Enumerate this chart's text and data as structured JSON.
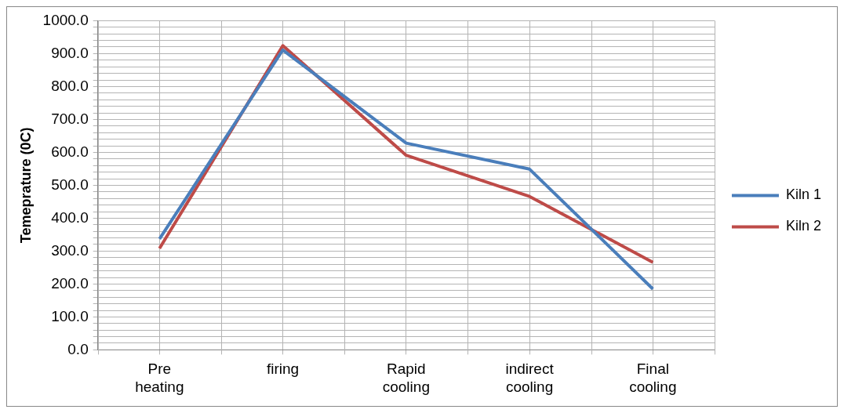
{
  "chart_data": {
    "type": "line",
    "ylabel": "Temeprature (0C)",
    "categories": [
      "Pre heating",
      "firing",
      "Rapid cooling",
      "indirect cooling",
      "Final cooling"
    ],
    "series": [
      {
        "name": "Kiln 1",
        "color": "#4a7ebb",
        "values": [
          337,
          911,
          628,
          549,
          185
        ]
      },
      {
        "name": "Kiln 2",
        "color": "#be4b48",
        "values": [
          308,
          924,
          591,
          466,
          266
        ]
      }
    ],
    "ylim": [
      0,
      1000
    ],
    "yticks": [
      {
        "value": 0,
        "label": "0.0"
      },
      {
        "value": 20,
        "label": null
      },
      {
        "value": 40,
        "label": null
      },
      {
        "value": 60,
        "label": null
      },
      {
        "value": 80,
        "label": null
      },
      {
        "value": 100,
        "label": "100.0"
      },
      {
        "value": 120,
        "label": null
      },
      {
        "value": 140,
        "label": null
      },
      {
        "value": 160,
        "label": null
      },
      {
        "value": 180,
        "label": null
      },
      {
        "value": 200,
        "label": "200.0"
      },
      {
        "value": 220,
        "label": null
      },
      {
        "value": 240,
        "label": null
      },
      {
        "value": 260,
        "label": null
      },
      {
        "value": 280,
        "label": null
      },
      {
        "value": 300,
        "label": "300.0"
      },
      {
        "value": 320,
        "label": null
      },
      {
        "value": 340,
        "label": null
      },
      {
        "value": 360,
        "label": null
      },
      {
        "value": 380,
        "label": null
      },
      {
        "value": 400,
        "label": "400.0"
      },
      {
        "value": 420,
        "label": null
      },
      {
        "value": 440,
        "label": null
      },
      {
        "value": 460,
        "label": null
      },
      {
        "value": 480,
        "label": null
      },
      {
        "value": 500,
        "label": "500.0"
      },
      {
        "value": 520,
        "label": null
      },
      {
        "value": 540,
        "label": null
      },
      {
        "value": 560,
        "label": null
      },
      {
        "value": 580,
        "label": null
      },
      {
        "value": 600,
        "label": "600.0"
      },
      {
        "value": 620,
        "label": null
      },
      {
        "value": 640,
        "label": null
      },
      {
        "value": 660,
        "label": null
      },
      {
        "value": 680,
        "label": null
      },
      {
        "value": 700,
        "label": "700.0"
      },
      {
        "value": 720,
        "label": null
      },
      {
        "value": 740,
        "label": null
      },
      {
        "value": 760,
        "label": null
      },
      {
        "value": 780,
        "label": null
      },
      {
        "value": 800,
        "label": "800.0"
      },
      {
        "value": 820,
        "label": null
      },
      {
        "value": 840,
        "label": null
      },
      {
        "value": 860,
        "label": null
      },
      {
        "value": 880,
        "label": null
      },
      {
        "value": 900,
        "label": "900.0"
      },
      {
        "value": 920,
        "label": null
      },
      {
        "value": 940,
        "label": null
      },
      {
        "value": 960,
        "label": null
      },
      {
        "value": 980,
        "label": null
      },
      {
        "value": 1000,
        "label": "1000.0"
      }
    ],
    "grid": true,
    "legend": "right",
    "marker": "none",
    "line_style": "solid"
  }
}
